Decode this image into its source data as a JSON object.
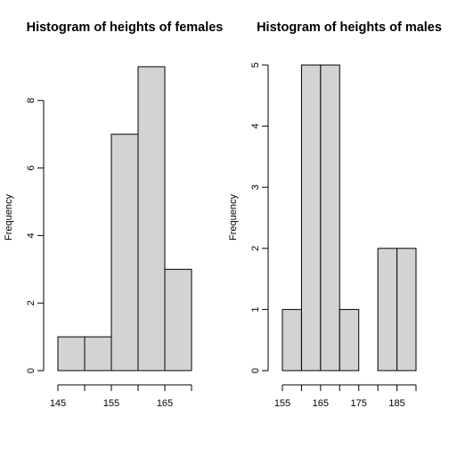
{
  "chart_data": [
    {
      "type": "bar",
      "title": "Histogram of heights of females",
      "xlabel": "",
      "ylabel": "Frequency",
      "bin_edges": [
        145,
        150,
        155,
        160,
        165,
        170
      ],
      "values": [
        1,
        1,
        7,
        9,
        3
      ],
      "xlim": [
        145,
        170
      ],
      "ylim": [
        0,
        9
      ],
      "x_ticks": [
        145,
        150,
        155,
        160,
        165,
        170
      ],
      "x_tick_labels": [
        "145",
        "",
        "155",
        "",
        "165",
        ""
      ],
      "y_ticks": [
        0,
        2,
        4,
        6,
        8
      ],
      "y_tick_labels": [
        "0",
        "2",
        "4",
        "6",
        "8"
      ],
      "bar_color": "#d3d3d3",
      "grid": false
    },
    {
      "type": "bar",
      "title": "Histogram of heights of males",
      "xlabel": "",
      "ylabel": "Frequency",
      "bin_edges": [
        155,
        160,
        165,
        170,
        175,
        180,
        185,
        190
      ],
      "values": [
        1,
        5,
        5,
        1,
        0,
        2,
        2
      ],
      "xlim": [
        155,
        190
      ],
      "ylim": [
        0,
        5
      ],
      "x_ticks": [
        155,
        160,
        165,
        170,
        175,
        180,
        185,
        190
      ],
      "x_tick_labels": [
        "155",
        "",
        "165",
        "",
        "175",
        "",
        "185",
        ""
      ],
      "y_ticks": [
        0,
        1,
        2,
        3,
        4,
        5
      ],
      "y_tick_labels": [
        "0",
        "1",
        "2",
        "3",
        "4",
        "5"
      ],
      "bar_color": "#d3d3d3",
      "grid": false
    }
  ]
}
